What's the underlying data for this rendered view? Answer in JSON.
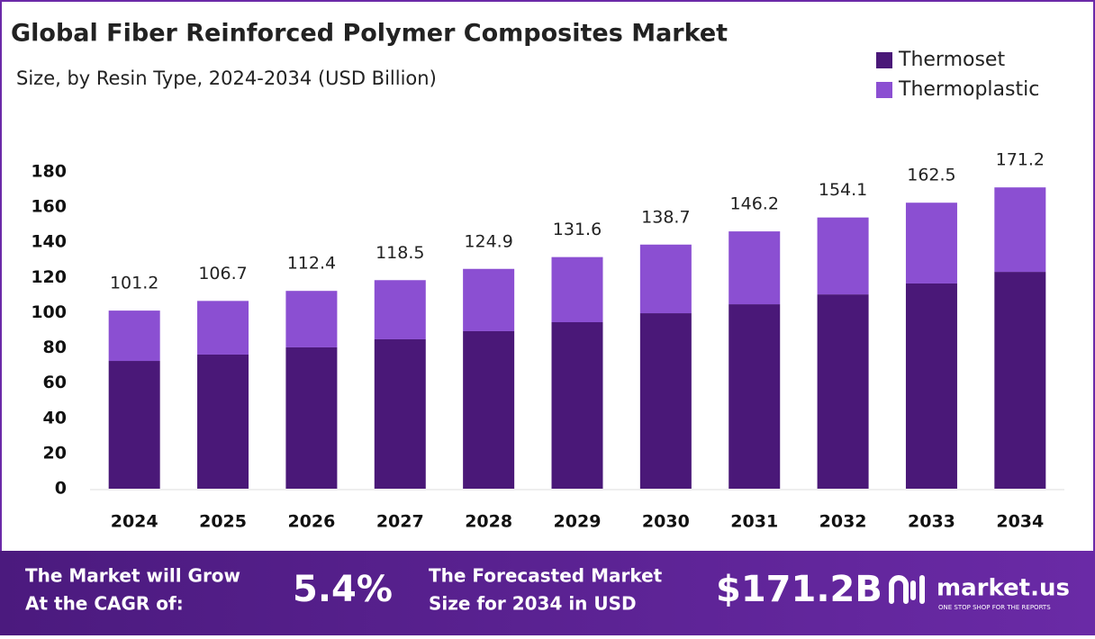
{
  "chart_data": {
    "type": "stacked_bar",
    "title": "Global Fiber Reinforced Polymer Composites Market",
    "subtitle": "Size, by Resin Type, 2024-2034 (USD Billion)",
    "categories": [
      "2024",
      "2025",
      "2026",
      "2027",
      "2028",
      "2029",
      "2030",
      "2031",
      "2032",
      "2033",
      "2034"
    ],
    "series": [
      {
        "name": "Thermoset",
        "color": "#4a1878",
        "values": [
          72.6,
          76.2,
          80.3,
          84.9,
          89.5,
          94.6,
          99.7,
          104.8,
          110.4,
          116.6,
          123.2
        ]
      },
      {
        "name": "Thermoplastic",
        "color": "#8b4fd2",
        "values": [
          28.6,
          30.5,
          32.1,
          33.6,
          35.4,
          37.0,
          39.0,
          41.4,
          43.7,
          45.9,
          48.0
        ]
      }
    ],
    "totals": [
      101.2,
      106.7,
      112.4,
      118.5,
      124.9,
      131.6,
      138.7,
      146.2,
      154.1,
      162.5,
      171.2
    ],
    "ylim": [
      0,
      180
    ],
    "yticks": [
      0,
      20,
      40,
      60,
      80,
      100,
      120,
      140,
      160,
      180
    ],
    "grid": false
  },
  "footer": {
    "cagr_text": [
      "The Market will Grow",
      "At the CAGR of:"
    ],
    "cagr_value": "5.4%",
    "forecast_text": [
      "The Forecasted Market",
      "Size for 2034 in USD"
    ],
    "forecast_value": "$171.2B",
    "brand": "market.us",
    "tagline": "ONE STOP SHOP FOR THE REPORTS"
  }
}
